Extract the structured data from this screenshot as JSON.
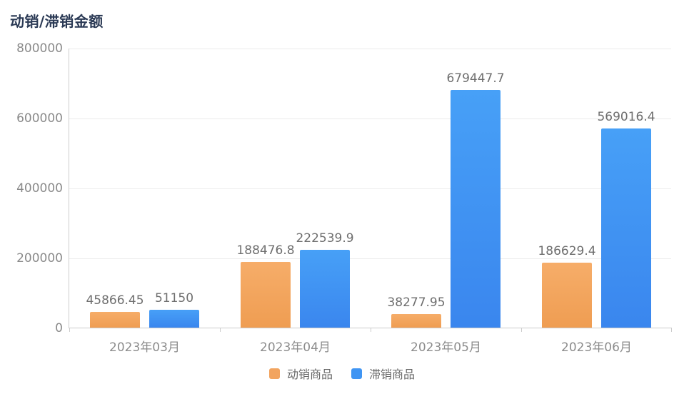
{
  "page": {
    "background": "#ffffff"
  },
  "chart_data": {
    "type": "bar",
    "title": "动销/滞销金额",
    "categories": [
      "2023年03月",
      "2023年04月",
      "2023年05月",
      "2023年06月"
    ],
    "series": [
      {
        "key": "active-sales",
        "name": "动销商品",
        "color": "#f2a45f",
        "color_top": "#f6ad69",
        "color_bottom": "#ef9d52",
        "values": [
          45866.45,
          188476.8,
          38277.95,
          186629.4
        ]
      },
      {
        "key": "slow-sales",
        "name": "滞销商品",
        "color": "#4095f3",
        "color_top": "#47a0f7",
        "color_bottom": "#3a86ee",
        "values": [
          51150,
          222539.9,
          679447.7,
          569016.4
        ]
      }
    ],
    "ylim": [
      0,
      800000
    ],
    "yticks": [
      0,
      200000,
      400000,
      600000,
      800000
    ],
    "grid": true,
    "value_labels": true,
    "legend_position": "bottom",
    "axis_color": "#cccccc",
    "grid_color": "#ececec",
    "label_color": "#6e6e6e",
    "axis_label_color": "#8c8c8c",
    "title_color": "#2b3a55"
  }
}
